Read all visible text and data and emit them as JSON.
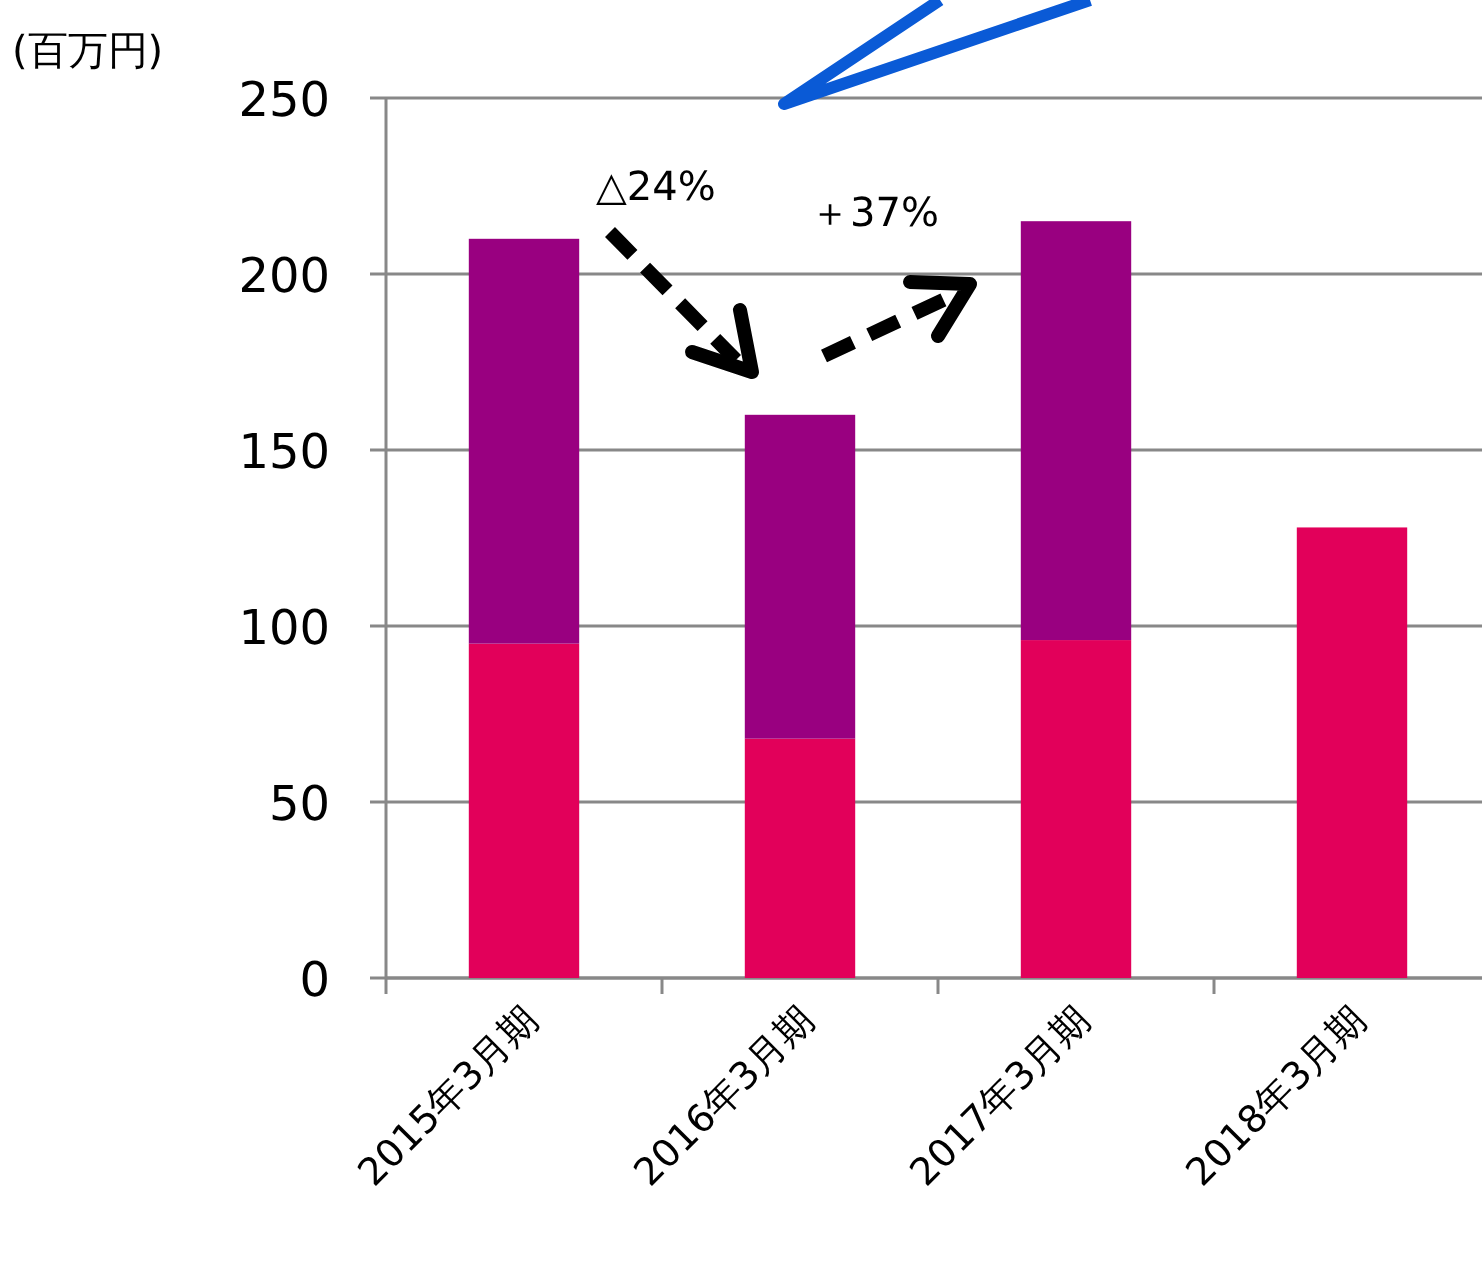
{
  "chart_data": {
    "type": "bar",
    "stacked": true,
    "ylabel": "(百万円)",
    "categories": [
      "2015年3月期",
      "2016年3月期",
      "2017年3月期",
      "2018年3月期"
    ],
    "series": [
      {
        "color": "#e2005a",
        "values": [
          95,
          68,
          96,
          128
        ]
      },
      {
        "color": "#990080",
        "values": [
          115,
          92,
          119,
          null
        ]
      }
    ],
    "ylim": [
      0,
      250
    ],
    "yticks": [
      0,
      50,
      100,
      150,
      200,
      250
    ],
    "grid": "y",
    "annotations": [
      "△24%",
      "＋37%"
    ]
  }
}
